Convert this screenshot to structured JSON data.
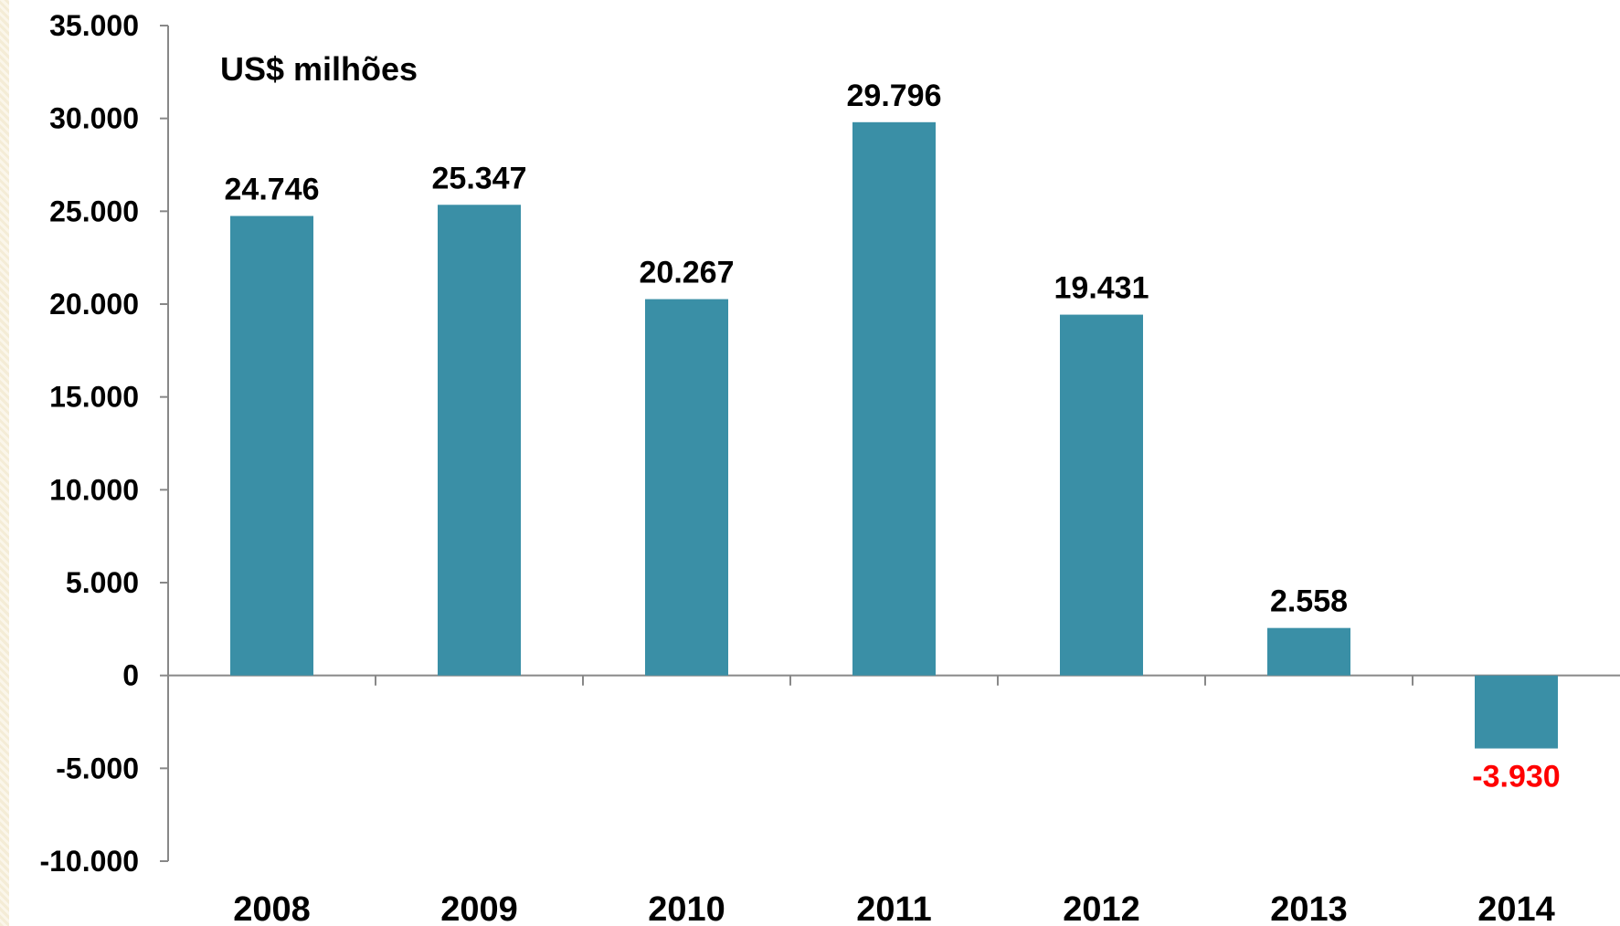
{
  "chart_data": {
    "type": "bar",
    "title": "",
    "unit_label": "US$ milhões",
    "xlabel": "",
    "ylabel": "",
    "categories": [
      "2008",
      "2009",
      "2010",
      "2011",
      "2012",
      "2013",
      "2014"
    ],
    "series": [
      {
        "values": [
          24746,
          25347,
          20267,
          29796,
          19431,
          2558,
          -3930
        ]
      }
    ],
    "data_labels": [
      "24.746",
      "25.347",
      "20.267",
      "29.796",
      "19.431",
      "2.558",
      "-3.930"
    ],
    "ylim": [
      -10000,
      35000
    ],
    "y_ticks": [
      35000,
      30000,
      25000,
      20000,
      15000,
      10000,
      5000,
      0,
      -5000,
      -10000
    ],
    "y_tick_labels": [
      "35.000",
      "30.000",
      "25.000",
      "20.000",
      "15.000",
      "10.000",
      "5.000",
      "0",
      "-5.000",
      "-10.000"
    ],
    "grid": false,
    "legend": "none",
    "colors": {
      "bar": "#3a8fa6",
      "axis": "#888888",
      "label_positive": "#000000",
      "label_negative": "#ff0000"
    }
  }
}
